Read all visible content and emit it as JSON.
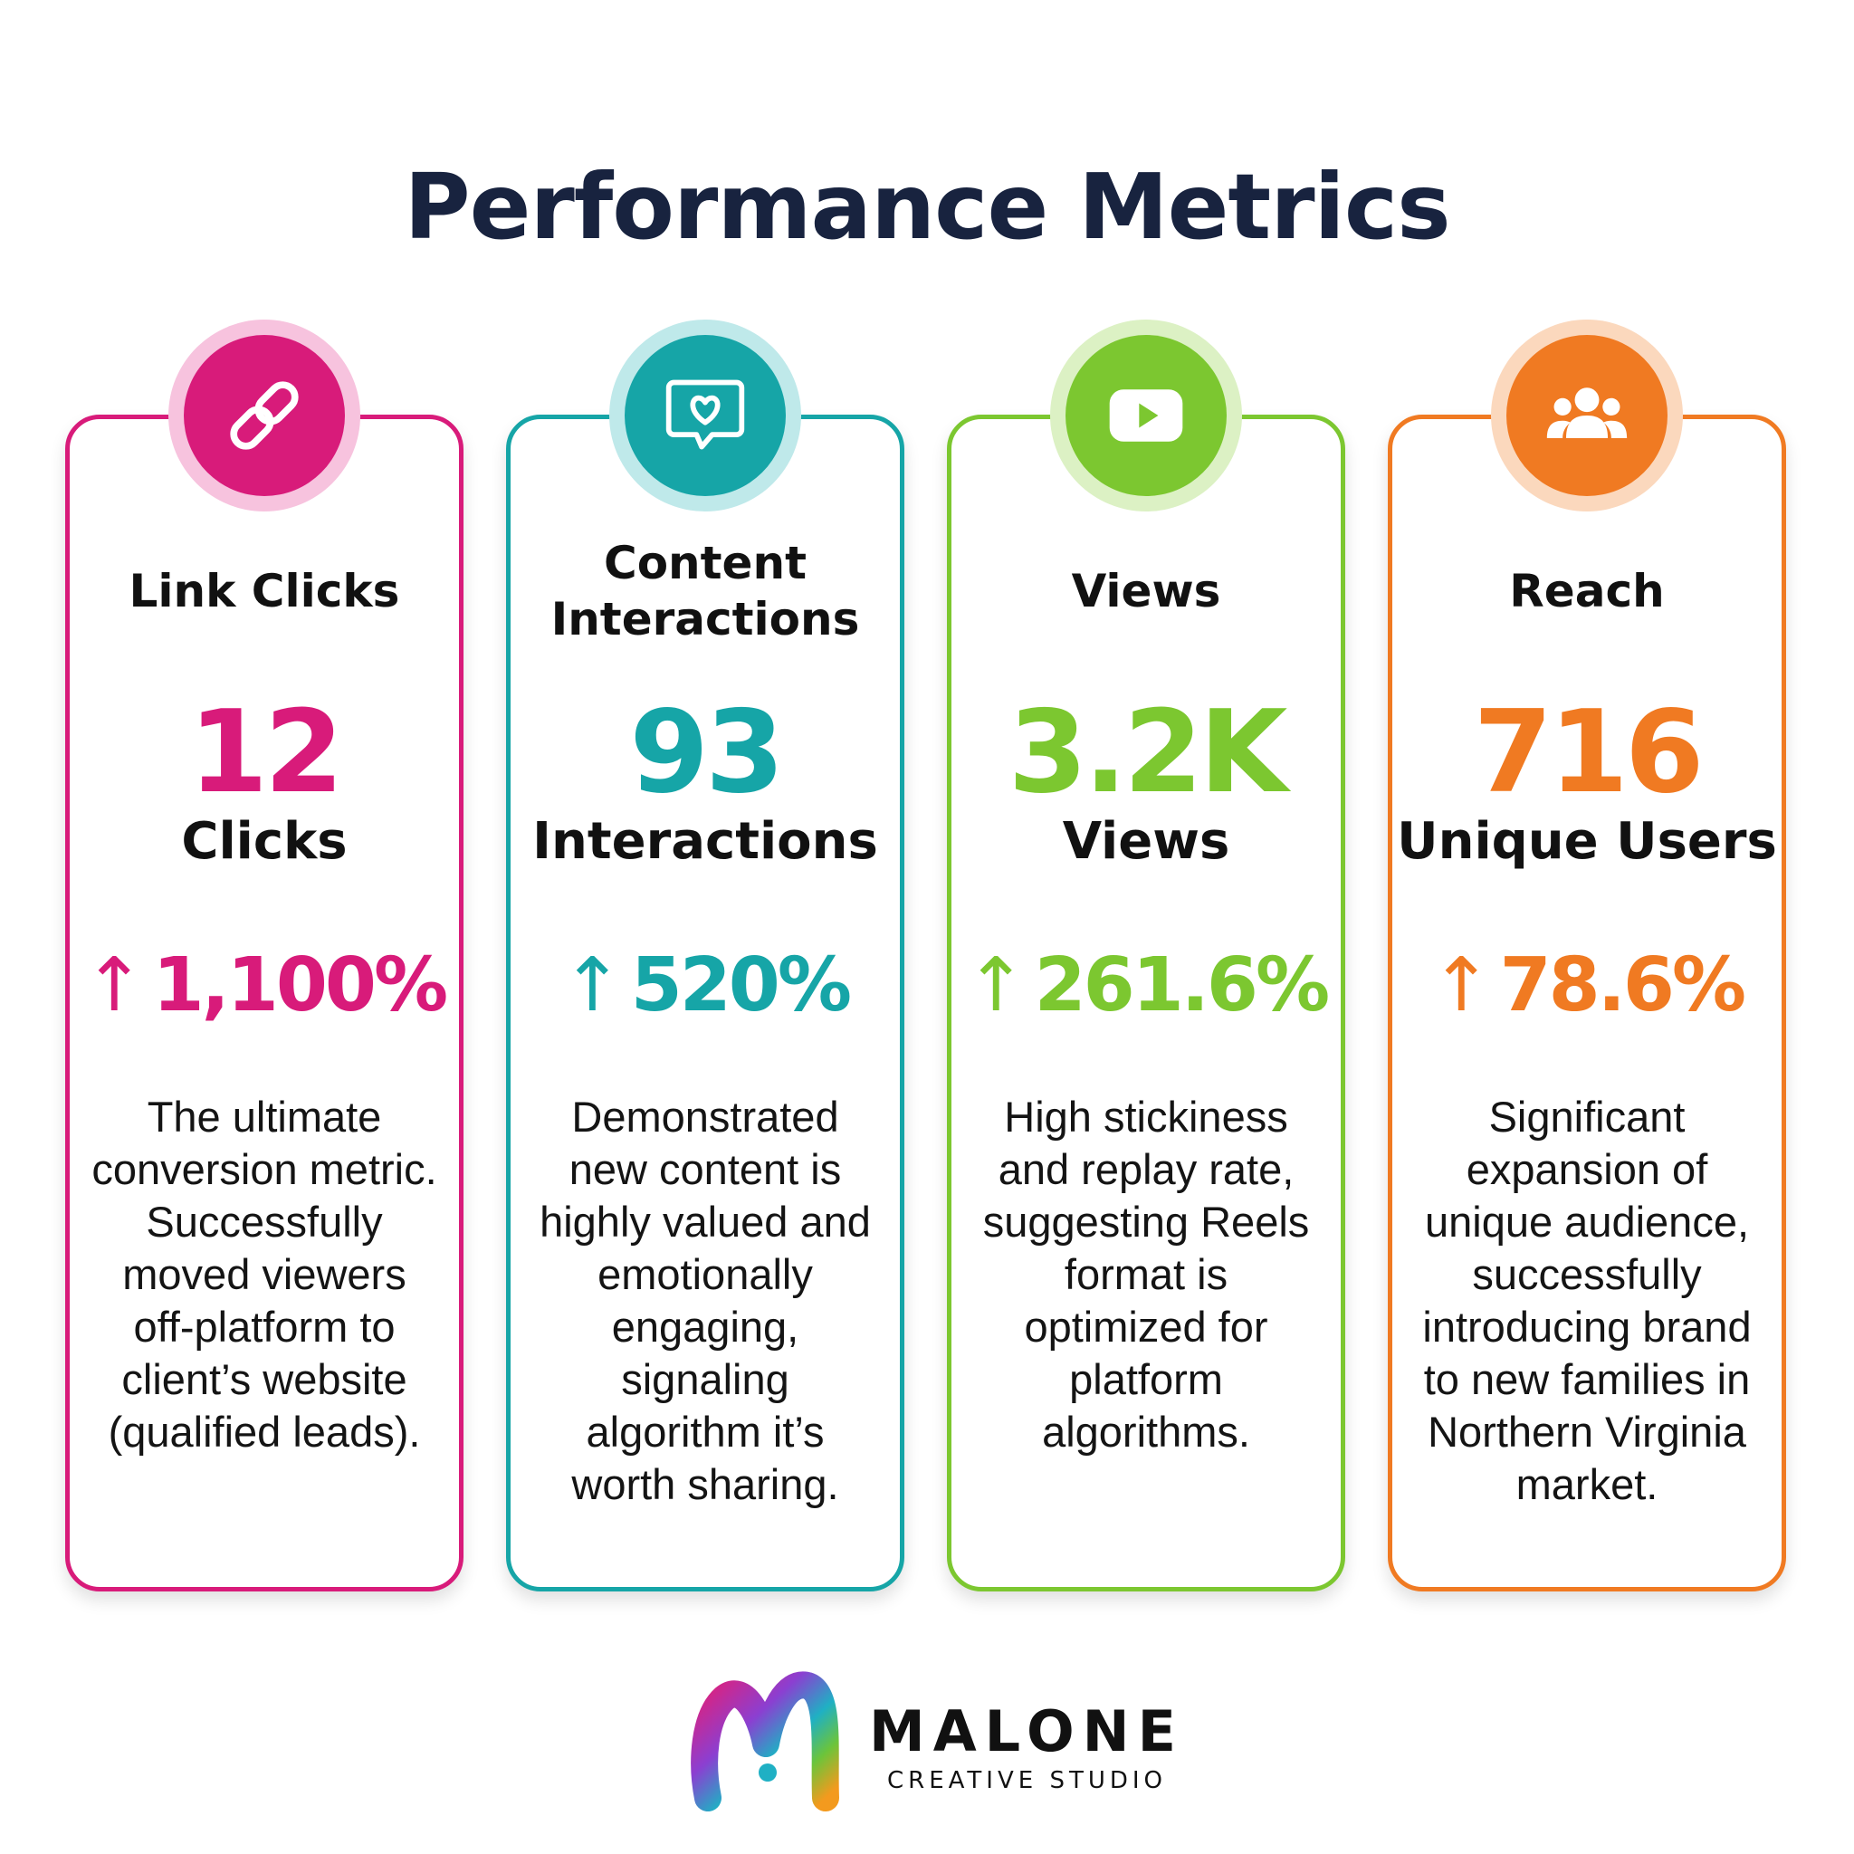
{
  "title": "Performance Metrics",
  "cards": [
    {
      "label": "Link Clicks",
      "value": "12",
      "unit": "Clicks",
      "change": "1,100%",
      "description": "The ultimate conversion metric. Successfully moved viewers off-platform to client’s website (qualified leads).",
      "icon": "link-icon",
      "color": "#d81b7a",
      "halo": "#f7c3de"
    },
    {
      "label": "Content Interactions",
      "value": "93",
      "unit": "Interactions",
      "change": "520%",
      "description": "Demonstrated new content is highly valued and emotionally engaging, signaling algorithm it’s worth sharing.",
      "icon": "heart-chat-icon",
      "color": "#16a5a7",
      "halo": "#bfe9ea"
    },
    {
      "label": "Views",
      "value": "3.2K",
      "unit": "Views",
      "change": "261.6%",
      "description": "High stickiness and replay rate, suggesting Reels format is optimized for platform algorithms.",
      "icon": "play-icon",
      "color": "#7cc730",
      "halo": "#dcf1c4"
    },
    {
      "label": "Reach",
      "value": "716",
      "unit": "Unique Users",
      "change": "78.6%",
      "description": "Significant expansion of unique audience, successfully introducing brand to new families in Northern Virginia market.",
      "icon": "users-icon",
      "color": "#f07a22",
      "halo": "#fbd8bd"
    }
  ],
  "change_arrow": "↑",
  "brand": {
    "name": "MALONE",
    "subtitle": "CREATIVE STUDIO"
  }
}
